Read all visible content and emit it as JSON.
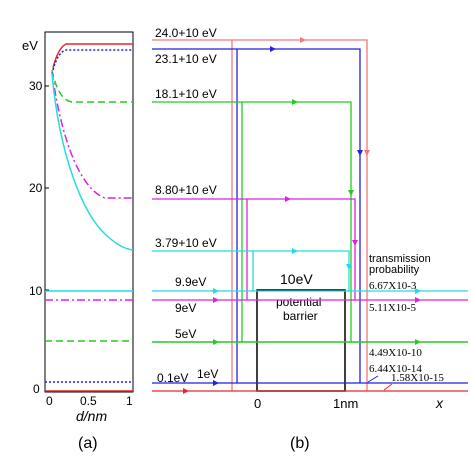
{
  "panel_a": {
    "y_unit": "eV",
    "y_ticks": [
      "0",
      "10",
      "20",
      "30"
    ],
    "x_ticks": [
      "0",
      "0.5",
      "1"
    ],
    "x_label": "d/nm",
    "caption": "(a)"
  },
  "panel_b": {
    "caption": "(b)",
    "barrier_height_label": "10eV",
    "barrier_text_line1": "potential",
    "barrier_text_line2": "barrier",
    "x_tick_0": "0",
    "x_tick_1nm": "1nm",
    "x_axis_label": "x",
    "transmission_header_line1": "transmission",
    "transmission_header_line2": "probability",
    "level_labels": {
      "e24": "24.0+10 eV",
      "e23": "23.1+10 eV",
      "e18": "18.1+10 eV",
      "e8": "8.80+10 eV",
      "e3": "3.79+10 eV",
      "e99": "9.9eV",
      "e9": "9eV",
      "e5": "5eV",
      "e01": "0.1eV",
      "e1": "1eV"
    },
    "transmission_values": {
      "t99": "6.67X10-3",
      "t9": "5.11X10-5",
      "t5": "4.49X10-10",
      "t1": "6.44X10-14",
      "t01": "1.58X10-15"
    }
  },
  "colors": {
    "red": "#e8262b",
    "salmon": "#f07a7a",
    "blue": "#2222dd",
    "green": "#22cc22",
    "magenta": "#dd22dd",
    "cyan": "#22dddd"
  }
}
